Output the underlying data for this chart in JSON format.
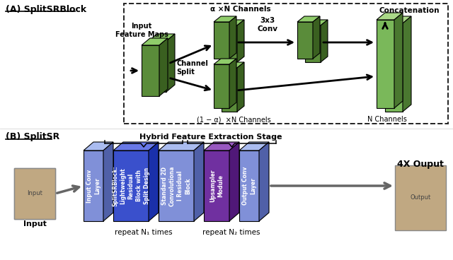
{
  "title_A": "(A) SplitSRBlock",
  "title_B": "(B) SplitSR",
  "hybrid_label": "Hybrid Feature Extraction Stage",
  "output_label": "4X Ouput",
  "input_label": "Input",
  "repeat_n1": "repeat N₁ times",
  "repeat_n2": "repeat N₂ times",
  "alpha_label": "α ×N Channels",
  "one_minus_alpha_label": "(1 − α)  ×N Channels",
  "n_channels_label": "N Channels",
  "conv_label": "3x3\nConv",
  "concat_label": "Concatenation",
  "channel_split_label": "Channel\nSplit",
  "input_feature_maps_label": "Input\nFeature Maps",
  "green_face": "#5a8c3a",
  "green_top": "#8fcc6a",
  "green_side": "#3a6020",
  "green_face2": "#7ab85a",
  "green_top2": "#aad888",
  "green_side2": "#4a7830",
  "blue_light_face": "#8090d8",
  "blue_light_top": "#aabcf0",
  "blue_light_side": "#5060a8",
  "blue_dark_face": "#3a50cc",
  "blue_dark_top": "#6070e8",
  "blue_dark_side": "#1a30aa",
  "purple_face": "#7030a0",
  "purple_top": "#9858c0",
  "purple_side": "#501878",
  "background": "#ffffff",
  "blocks_b": [
    {
      "label": "Input Conv\nLayer",
      "type": "light"
    },
    {
      "label": "SplitSRBlock:\nLightweight\nResidual\nBlock with\nSplit Design",
      "type": "dark"
    },
    {
      "label": "Standard 2D\nConvolutiona\nl Residual\nBlock",
      "type": "light"
    },
    {
      "label": "Upsampler\nModule",
      "type": "purple"
    },
    {
      "label": "Output Conv\nLayer",
      "type": "light"
    }
  ]
}
